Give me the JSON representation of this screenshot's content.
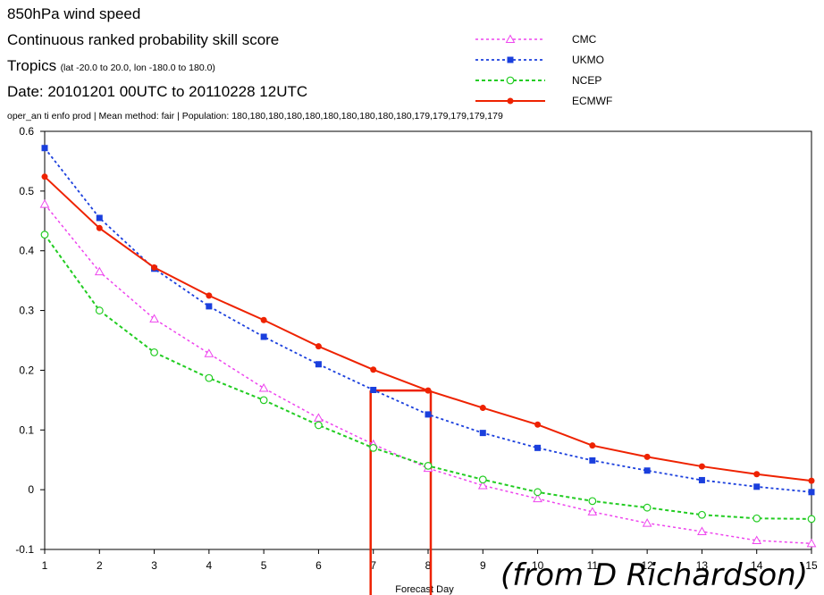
{
  "header": {
    "line1": "850hPa wind speed",
    "line2": "Continuous ranked probability skill score",
    "line3_main": "Tropics",
    "line3_detail": "(lat  -20.0 to 20.0, lon  -180.0 to  180.0)",
    "line4": "Date: 20101201 00UTC to 20110228 12UTC",
    "info": "oper_an ti enfo prod | Mean method: fair | Population: 180,180,180,180,180,180,180,180,180,180,179,179,179,179,179"
  },
  "watermark": "(from D Richardson)",
  "colors": {
    "CMC": "#ee44ee",
    "UKMO": "#1a3fdd",
    "NCEP": "#22cc22",
    "ECMWF": "#ee2200",
    "highlight": "#ee2200"
  },
  "chart_data": {
    "type": "line",
    "title": "Continuous ranked probability skill score",
    "xlabel": "Forecast Day",
    "ylabel": "",
    "x": [
      1,
      2,
      3,
      4,
      5,
      6,
      7,
      8,
      9,
      10,
      11,
      12,
      13,
      14,
      15
    ],
    "xlim": [
      1,
      15
    ],
    "ylim": [
      -0.1,
      0.6
    ],
    "yticks": [
      "-0.1",
      "0",
      "0.1",
      "0.2",
      "0.3",
      "0.4",
      "0.5",
      "0.6"
    ],
    "xticks": [
      "1",
      "2",
      "3",
      "4",
      "5",
      "6",
      "7",
      "8",
      "9",
      "10",
      "11",
      "12",
      "13",
      "14",
      "15"
    ],
    "legend_position": "top-right",
    "grid": false,
    "series": [
      {
        "name": "CMC",
        "values": [
          0.478,
          0.365,
          0.286,
          0.228,
          0.17,
          0.12,
          0.076,
          0.036,
          0.007,
          -0.015,
          -0.037,
          -0.056,
          -0.07,
          -0.085,
          -0.09
        ]
      },
      {
        "name": "UKMO",
        "values": [
          0.572,
          0.455,
          0.37,
          0.307,
          0.256,
          0.21,
          0.167,
          0.126,
          0.095,
          0.07,
          0.049,
          0.032,
          0.016,
          0.005,
          -0.004
        ]
      },
      {
        "name": "NCEP",
        "values": [
          0.427,
          0.3,
          0.23,
          0.187,
          0.15,
          0.108,
          0.07,
          0.04,
          0.017,
          -0.004,
          -0.019,
          -0.03,
          -0.042,
          -0.048,
          -0.049
        ]
      },
      {
        "name": "ECMWF",
        "values": [
          0.524,
          0.438,
          0.372,
          0.325,
          0.284,
          0.24,
          0.201,
          0.166,
          0.137,
          0.109,
          0.074,
          0.055,
          0.039,
          0.026,
          0.015
        ]
      }
    ],
    "annotation": {
      "skill_level": 0.166,
      "ukmo_day": 7,
      "ecmwf_day": 8
    }
  }
}
